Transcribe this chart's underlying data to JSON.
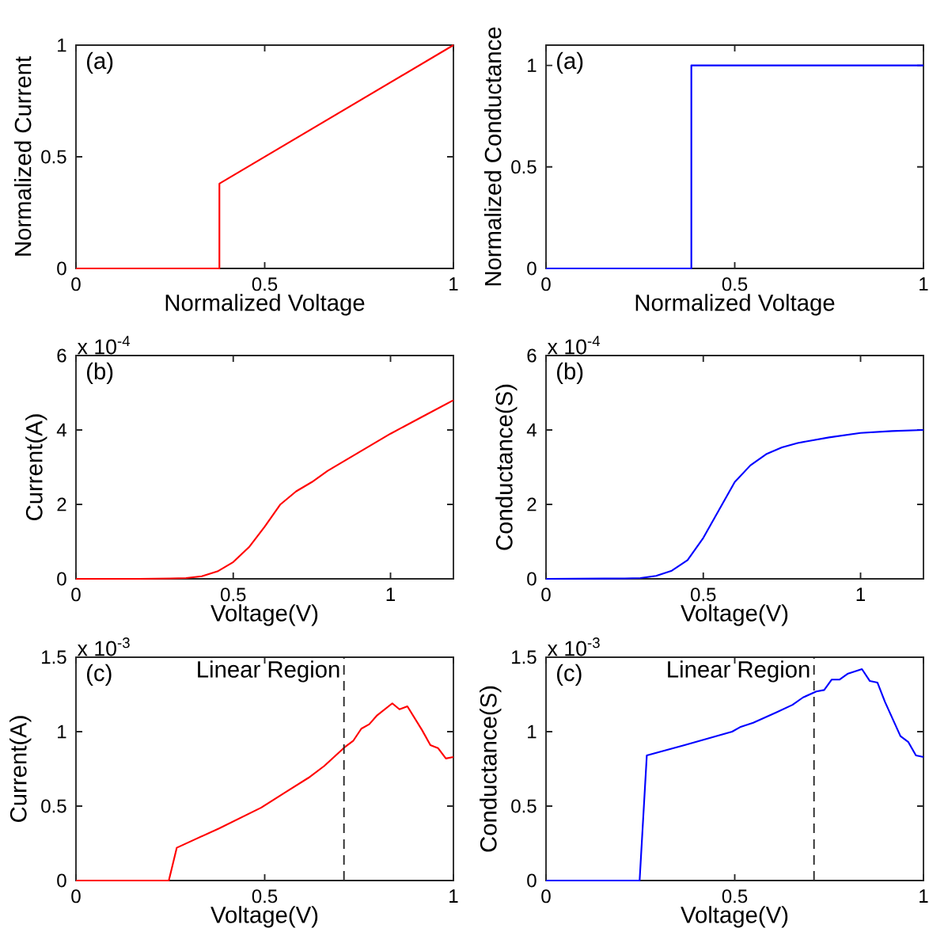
{
  "chart_data": [
    {
      "type": "line",
      "title": "(a)",
      "xlabel": "Normalized Voltage",
      "ylabel": "Normalized Current",
      "xlim": [
        0,
        1
      ],
      "ylim": [
        0,
        1
      ],
      "xticks": [
        0,
        0.5,
        1
      ],
      "yticks": [
        0,
        0.5,
        1
      ],
      "marker": "none",
      "line_style": "solid",
      "series": [
        {
          "color": "#ff0000",
          "x": [
            0,
            0.38,
            0.38,
            1
          ],
          "values": [
            0,
            0,
            0.38,
            1
          ]
        }
      ]
    },
    {
      "type": "line",
      "title": "(a)",
      "xlabel": "Normalized Voltage",
      "ylabel": "Normalized Conductance",
      "xlim": [
        0,
        1
      ],
      "ylim": [
        0,
        1.1
      ],
      "xticks": [
        0,
        0.5,
        1
      ],
      "yticks": [
        0,
        0.5,
        1
      ],
      "marker": "none",
      "line_style": "solid",
      "series": [
        {
          "color": "#0000ff",
          "x": [
            0,
            0.385,
            0.385,
            1
          ],
          "values": [
            0,
            0,
            1,
            1
          ]
        }
      ]
    },
    {
      "type": "line",
      "title": "(b)",
      "annotations": [
        "x 10$^{-4}$"
      ],
      "xlabel": "Voltage(V)",
      "ylabel": "Current(A)",
      "xlim": [
        0,
        1.2
      ],
      "ylim": [
        0,
        6
      ],
      "xticks": [
        0,
        0.5,
        1
      ],
      "yticks": [
        0,
        2,
        4,
        6
      ],
      "marker": "none",
      "line_style": "solid",
      "series": [
        {
          "color": "#ff0000",
          "x": [
            0,
            0.2,
            0.3,
            0.35,
            0.4,
            0.45,
            0.5,
            0.55,
            0.6,
            0.65,
            0.7,
            0.75,
            0.8,
            0.9,
            1.0,
            1.1,
            1.2
          ],
          "values": [
            0,
            0,
            0.01,
            0.02,
            0.07,
            0.2,
            0.45,
            0.85,
            1.4,
            2.0,
            2.35,
            2.6,
            2.9,
            3.4,
            3.9,
            4.35,
            4.8
          ]
        }
      ]
    },
    {
      "type": "line",
      "title": "(b)",
      "annotations": [
        "x 10$^{-4}$"
      ],
      "xlabel": "Voltage(V)",
      "ylabel": "Conductance(S)",
      "xlim": [
        0,
        1.2
      ],
      "ylim": [
        0,
        6
      ],
      "xticks": [
        0,
        0.5,
        1
      ],
      "yticks": [
        0,
        2,
        4,
        6
      ],
      "marker": "none",
      "line_style": "solid",
      "series": [
        {
          "color": "#0000ff",
          "x": [
            0,
            0.25,
            0.3,
            0.35,
            0.4,
            0.45,
            0.5,
            0.55,
            0.6,
            0.65,
            0.7,
            0.75,
            0.8,
            0.9,
            1.0,
            1.1,
            1.2
          ],
          "values": [
            0,
            0.01,
            0.02,
            0.08,
            0.22,
            0.5,
            1.1,
            1.85,
            2.6,
            3.05,
            3.35,
            3.53,
            3.65,
            3.8,
            3.92,
            3.97,
            4.0
          ]
        }
      ]
    },
    {
      "type": "line",
      "title": "(c)",
      "annotations": [
        "x 10$^{-3}$"
      ],
      "xlabel": "Voltage(V)",
      "ylabel": "Current(A)",
      "xlim": [
        0,
        1
      ],
      "ylim": [
        0,
        1.5
      ],
      "xticks": [
        0,
        0.5,
        1
      ],
      "yticks": [
        0,
        0.5,
        1,
        1.5
      ],
      "marker": "none",
      "line_style": "solid",
      "ref_lines": [
        {
          "axis": "x",
          "value": 0.71,
          "label": "Linear Region",
          "color": "#262626",
          "line_style": "dashed"
        }
      ],
      "series": [
        {
          "color": "#ff0000",
          "x": [
            0,
            0.246,
            0.267,
            0.379,
            0.491,
            0.553,
            0.616,
            0.658,
            0.714,
            0.735,
            0.756,
            0.777,
            0.798,
            0.838,
            0.857,
            0.878,
            0.917,
            0.939,
            0.959,
            0.98,
            1.0
          ],
          "values": [
            0,
            0,
            0.22,
            0.35,
            0.49,
            0.59,
            0.69,
            0.77,
            0.9,
            0.94,
            1.02,
            1.05,
            1.11,
            1.19,
            1.15,
            1.17,
            1.01,
            0.91,
            0.89,
            0.82,
            0.83
          ]
        }
      ]
    },
    {
      "type": "line",
      "title": "(c)",
      "annotations": [
        "x 10$^{-3}$"
      ],
      "xlabel": "Voltage(V)",
      "ylabel": "Conductance(S)",
      "xlim": [
        0,
        1
      ],
      "ylim": [
        0,
        1.5
      ],
      "xticks": [
        0,
        0.5,
        1
      ],
      "yticks": [
        0,
        0.5,
        1,
        1.5
      ],
      "marker": "none",
      "line_style": "solid",
      "ref_lines": [
        {
          "axis": "x",
          "value": 0.71,
          "label": "Linear Region",
          "color": "#262626",
          "line_style": "dashed"
        }
      ],
      "series": [
        {
          "color": "#0000ff",
          "x": [
            0,
            0.248,
            0.267,
            0.367,
            0.493,
            0.514,
            0.549,
            0.611,
            0.653,
            0.681,
            0.716,
            0.737,
            0.757,
            0.778,
            0.8,
            0.837,
            0.858,
            0.878,
            0.898,
            0.939,
            0.96,
            0.98,
            1.0
          ],
          "values": [
            0,
            0,
            0.84,
            0.91,
            1.0,
            1.03,
            1.06,
            1.13,
            1.18,
            1.23,
            1.27,
            1.28,
            1.35,
            1.35,
            1.39,
            1.42,
            1.34,
            1.33,
            1.2,
            0.97,
            0.93,
            0.84,
            0.83
          ]
        }
      ]
    }
  ]
}
